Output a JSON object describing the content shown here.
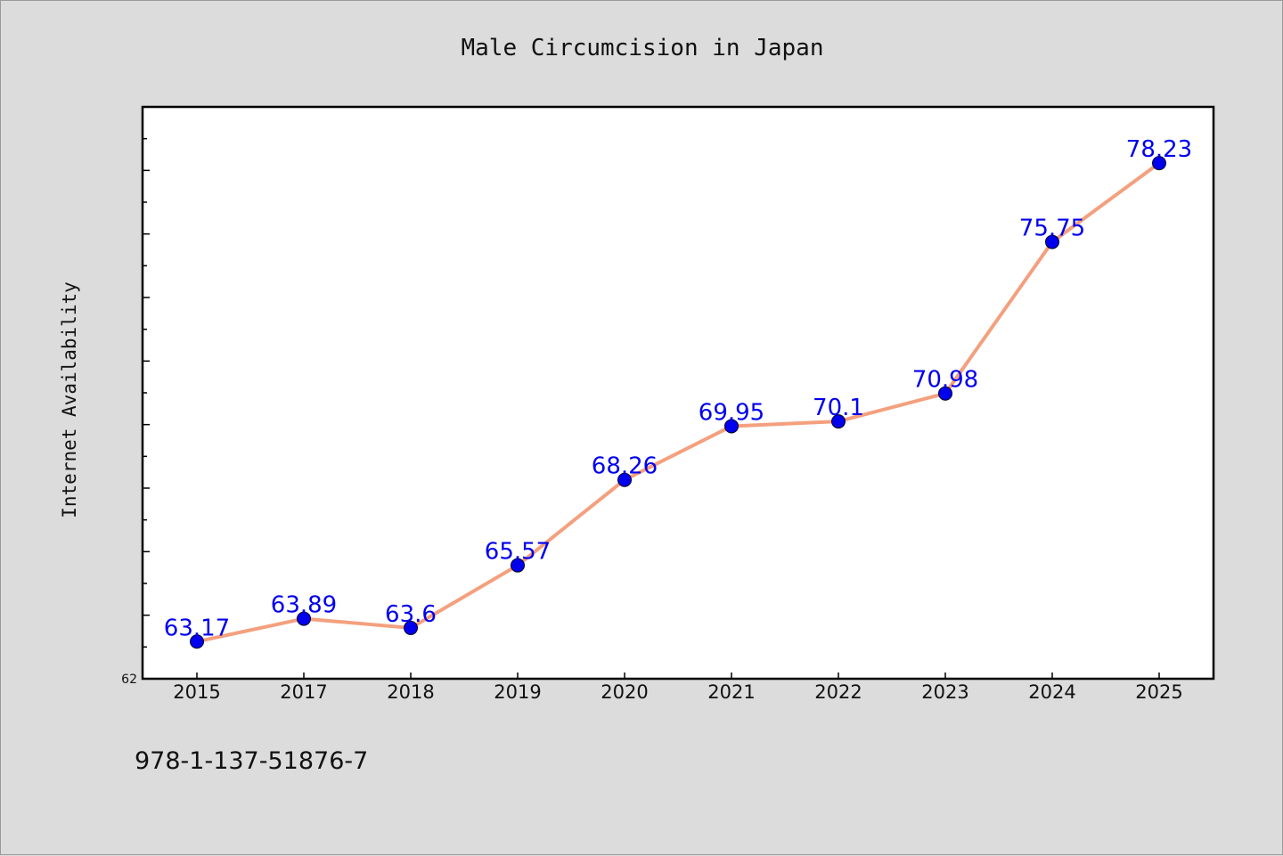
{
  "chart_data": {
    "type": "line",
    "title": "Male Circumcision in Japan",
    "xlabel": "",
    "ylabel": "Internet Availability",
    "categories": [
      "2015",
      "2017",
      "2018",
      "2019",
      "2020",
      "2021",
      "2022",
      "2023",
      "2024",
      "2025"
    ],
    "series": [
      {
        "values": [
          63.17,
          63.89,
          63.6,
          65.57,
          68.26,
          69.95,
          70.1,
          70.98,
          75.75,
          78.23
        ]
      }
    ],
    "data_labels": [
      "63.17",
      "63.89",
      "63.6",
      "65.57",
      "68.26",
      "69.95",
      "70.1",
      "70.98",
      "75.75",
      "78.23"
    ],
    "y_tick_labels": [
      "62"
    ],
    "ylim": [
      62,
      80
    ],
    "grid": false,
    "line_color": "#f4a07e",
    "marker_color": "#0000ee",
    "label_color": "#0000ee"
  },
  "footer_text": "978-1-137-51876-7"
}
